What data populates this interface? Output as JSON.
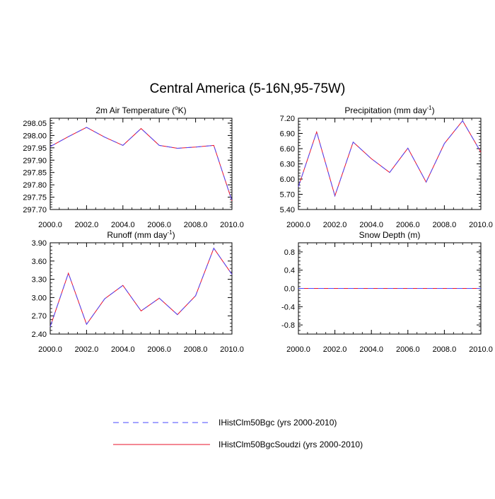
{
  "figure": {
    "title": "Central America (5-16N,95-75W)"
  },
  "colors": {
    "series_dashed": "#4a4aff",
    "series_solid": "#e8102a"
  },
  "legend": {
    "items": [
      {
        "label": "IHistClm50Bgc (yrs 2000-2010)",
        "style": "dashed",
        "color": "#4a4aff"
      },
      {
        "label": "IHistClm50BgcSoudzi (yrs 2000-2010)",
        "style": "solid",
        "color": "#e8102a"
      }
    ]
  },
  "chart_data": [
    {
      "type": "line",
      "title": "2m Air Temperature (°K)",
      "title_main": "2m Air Temperature (",
      "title_sup": "o",
      "title_tail": "K)",
      "x": [
        2000,
        2001,
        2002,
        2003,
        2004,
        2005,
        2006,
        2007,
        2008,
        2009,
        2010
      ],
      "xlim": [
        2000,
        2010
      ],
      "ylim": [
        297.7,
        298.07
      ],
      "yticks": [
        297.7,
        297.75,
        297.8,
        297.85,
        297.9,
        297.95,
        298.0,
        298.05
      ],
      "ytick_labels": [
        "297.70",
        "297.75",
        "297.80",
        "297.85",
        "297.90",
        "297.95",
        "298.00",
        "298.05"
      ],
      "xticks": [
        2000,
        2002,
        2004,
        2006,
        2008,
        2010
      ],
      "xtick_labels": [
        "2000.0",
        "2002.0",
        "2004.0",
        "2006.0",
        "2008.0",
        "2010.0"
      ],
      "series": [
        {
          "name": "IHistClm50Bgc (yrs 2000-2010)",
          "values": [
            297.955,
            297.995,
            298.033,
            297.993,
            297.96,
            298.028,
            297.96,
            297.948,
            297.953,
            297.96,
            297.735
          ]
        },
        {
          "name": "IHistClm50BgcSoudzi (yrs 2000-2010)",
          "values": [
            297.955,
            297.995,
            298.033,
            297.993,
            297.96,
            298.028,
            297.96,
            297.948,
            297.953,
            297.96,
            297.735
          ]
        }
      ]
    },
    {
      "type": "line",
      "title": "Precipitation (mm day-1)",
      "title_main": "Precipitation (mm day",
      "title_sup": "-1",
      "title_tail": ")",
      "x": [
        2000,
        2001,
        2002,
        2003,
        2004,
        2005,
        2006,
        2007,
        2008,
        2009,
        2010
      ],
      "xlim": [
        2000,
        2010
      ],
      "ylim": [
        5.4,
        7.2
      ],
      "yticks": [
        5.4,
        5.7,
        6.0,
        6.3,
        6.6,
        6.9,
        7.2
      ],
      "ytick_labels": [
        "5.40",
        "5.70",
        "6.00",
        "6.30",
        "6.60",
        "6.90",
        "7.20"
      ],
      "xticks": [
        2000,
        2002,
        2004,
        2006,
        2008,
        2010
      ],
      "xtick_labels": [
        "2000.0",
        "2002.0",
        "2004.0",
        "2006.0",
        "2008.0",
        "2010.0"
      ],
      "series": [
        {
          "name": "IHistClm50Bgc (yrs 2000-2010)",
          "values": [
            5.85,
            6.93,
            5.67,
            6.73,
            6.4,
            6.13,
            6.61,
            5.94,
            6.7,
            7.15,
            6.53
          ]
        },
        {
          "name": "IHistClm50BgcSoudzi (yrs 2000-2010)",
          "values": [
            5.85,
            6.93,
            5.67,
            6.73,
            6.4,
            6.13,
            6.61,
            5.94,
            6.7,
            7.15,
            6.53
          ]
        }
      ]
    },
    {
      "type": "line",
      "title": "Runoff (mm day-1)",
      "title_main": "Runoff (mm day",
      "title_sup": "-1",
      "title_tail": ")",
      "x": [
        2000,
        2001,
        2002,
        2003,
        2004,
        2005,
        2006,
        2007,
        2008,
        2009,
        2010
      ],
      "xlim": [
        2000,
        2010
      ],
      "ylim": [
        2.4,
        3.9
      ],
      "yticks": [
        2.4,
        2.7,
        3.0,
        3.3,
        3.6,
        3.9
      ],
      "ytick_labels": [
        "2.40",
        "2.70",
        "3.00",
        "3.30",
        "3.60",
        "3.90"
      ],
      "xticks": [
        2000,
        2002,
        2004,
        2006,
        2008,
        2010
      ],
      "xtick_labels": [
        "2000.0",
        "2002.0",
        "2004.0",
        "2006.0",
        "2008.0",
        "2010.0"
      ],
      "series": [
        {
          "name": "IHistClm50Bgc (yrs 2000-2010)",
          "values": [
            2.52,
            3.4,
            2.56,
            2.98,
            3.2,
            2.78,
            2.99,
            2.72,
            3.03,
            3.81,
            3.38
          ]
        },
        {
          "name": "IHistClm50BgcSoudzi (yrs 2000-2010)",
          "values": [
            2.52,
            3.4,
            2.56,
            2.98,
            3.2,
            2.78,
            2.99,
            2.72,
            3.03,
            3.81,
            3.38
          ]
        }
      ]
    },
    {
      "type": "line",
      "title": "Snow Depth (m)",
      "title_main": "Snow Depth (m)",
      "title_sup": "",
      "title_tail": "",
      "x": [
        2000,
        2001,
        2002,
        2003,
        2004,
        2005,
        2006,
        2007,
        2008,
        2009,
        2010
      ],
      "xlim": [
        2000,
        2010
      ],
      "ylim": [
        -1.0,
        1.0
      ],
      "yticks": [
        -0.8,
        -0.4,
        0.0,
        0.4,
        0.8
      ],
      "ytick_labels": [
        "-0.8",
        "-0.4",
        "0.0",
        "0.4",
        "0.8"
      ],
      "xticks": [
        2000,
        2002,
        2004,
        2006,
        2008,
        2010
      ],
      "xtick_labels": [
        "2000.0",
        "2002.0",
        "2004.0",
        "2006.0",
        "2008.0",
        "2010.0"
      ],
      "series": [
        {
          "name": "IHistClm50Bgc (yrs 2000-2010)",
          "values": [
            0,
            0,
            0,
            0,
            0,
            0,
            0,
            0,
            0,
            0,
            0
          ]
        },
        {
          "name": "IHistClm50BgcSoudzi (yrs 2000-2010)",
          "values": [
            0,
            0,
            0,
            0,
            0,
            0,
            0,
            0,
            0,
            0,
            0
          ]
        }
      ]
    }
  ]
}
